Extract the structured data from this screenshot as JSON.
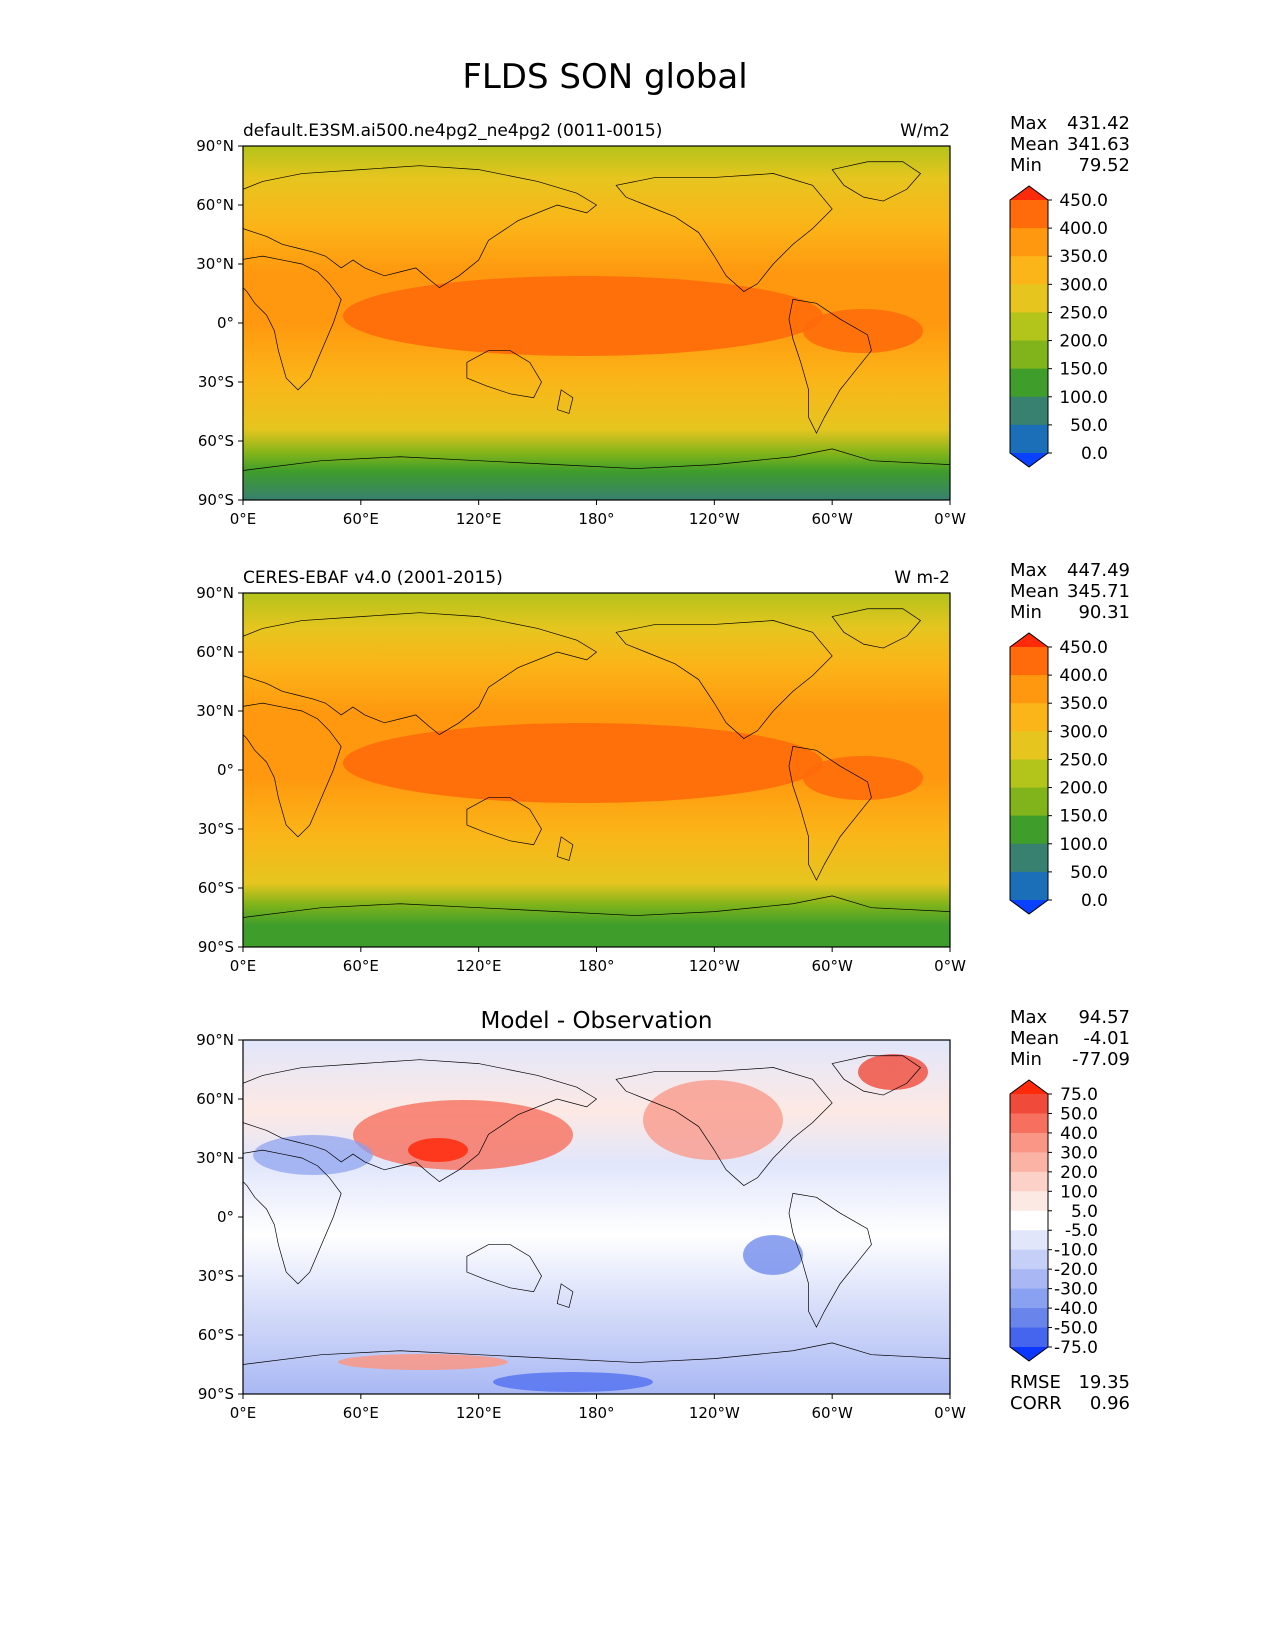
{
  "figure": {
    "title": "FLDS SON global"
  },
  "chart_data": [
    {
      "type": "heatmap",
      "map": "global contour map",
      "title_left": "default.E3SM.ai500.ne4pg2_ne4pg2 (0011-0015)",
      "title_center": "",
      "units": "W/m2",
      "xlim": [
        0,
        360
      ],
      "ylim": [
        -90,
        90
      ],
      "x_ticks": [
        "0°E",
        "60°E",
        "120°E",
        "180°",
        "120°W",
        "60°W",
        "0°W"
      ],
      "y_ticks": [
        "90°N",
        "60°N",
        "30°N",
        "0°",
        "30°S",
        "60°S",
        "90°S"
      ],
      "stats": [
        {
          "label": "Max",
          "value": "431.42"
        },
        {
          "label": "Mean",
          "value": "341.63"
        },
        {
          "label": "Min",
          "value": "79.52"
        }
      ],
      "metrics": [],
      "colorbar": {
        "levels": [
          "450.0",
          "400.0",
          "350.0",
          "300.0",
          "250.0",
          "200.0",
          "150.0",
          "100.0",
          "50.0",
          "0.0"
        ],
        "colors": [
          "#ff2a0a",
          "#ff6a0a",
          "#ff980f",
          "#fbb518",
          "#e6c51f",
          "#b3c41a",
          "#80b41a",
          "#3e9d2b",
          "#388070",
          "#1b6fb8",
          "#0a40ff"
        ]
      }
    },
    {
      "type": "heatmap",
      "map": "global contour map",
      "title_left": "CERES-EBAF v4.0 (2001-2015)",
      "title_center": "",
      "units": "W m-2",
      "xlim": [
        0,
        360
      ],
      "ylim": [
        -90,
        90
      ],
      "x_ticks": [
        "0°E",
        "60°E",
        "120°E",
        "180°",
        "120°W",
        "60°W",
        "0°W"
      ],
      "y_ticks": [
        "90°N",
        "60°N",
        "30°N",
        "0°",
        "30°S",
        "60°S",
        "90°S"
      ],
      "stats": [
        {
          "label": "Max",
          "value": "447.49"
        },
        {
          "label": "Mean",
          "value": "345.71"
        },
        {
          "label": "Min",
          "value": "90.31"
        }
      ],
      "metrics": [],
      "colorbar": {
        "levels": [
          "450.0",
          "400.0",
          "350.0",
          "300.0",
          "250.0",
          "200.0",
          "150.0",
          "100.0",
          "50.0",
          "0.0"
        ],
        "colors": [
          "#ff2a0a",
          "#ff6a0a",
          "#ff980f",
          "#fbb518",
          "#e6c51f",
          "#b3c41a",
          "#80b41a",
          "#3e9d2b",
          "#388070",
          "#1b6fb8",
          "#0a40ff"
        ]
      }
    },
    {
      "type": "heatmap",
      "map": "global contour map",
      "title_left": "",
      "title_center": "Model - Observation",
      "units": "",
      "xlim": [
        0,
        360
      ],
      "ylim": [
        -90,
        90
      ],
      "x_ticks": [
        "0°E",
        "60°E",
        "120°E",
        "180°",
        "120°W",
        "60°W",
        "0°W"
      ],
      "y_ticks": [
        "90°N",
        "60°N",
        "30°N",
        "0°",
        "30°S",
        "60°S",
        "90°S"
      ],
      "stats": [
        {
          "label": "Max",
          "value": "94.57"
        },
        {
          "label": "Mean",
          "value": "-4.01"
        },
        {
          "label": "Min",
          "value": "-77.09"
        }
      ],
      "metrics": [
        {
          "label": "RMSE",
          "value": "19.35"
        },
        {
          "label": "CORR",
          "value": "0.96"
        }
      ],
      "colorbar": {
        "levels": [
          "75.0",
          "50.0",
          "40.0",
          "30.0",
          "20.0",
          "10.0",
          "5.0",
          "-5.0",
          "-10.0",
          "-20.0",
          "-30.0",
          "-40.0",
          "-50.0",
          "-75.0"
        ],
        "colors": [
          "#ff2a0a",
          "#f04a3a",
          "#f7705f",
          "#f99685",
          "#fbb3a6",
          "#fcd2c8",
          "#fde9e4",
          "#ffffff",
          "#e1e6fb",
          "#c5cff7",
          "#a9b8f4",
          "#8aa0f0",
          "#6985eb",
          "#4565ef",
          "#0a36ff"
        ]
      }
    }
  ]
}
